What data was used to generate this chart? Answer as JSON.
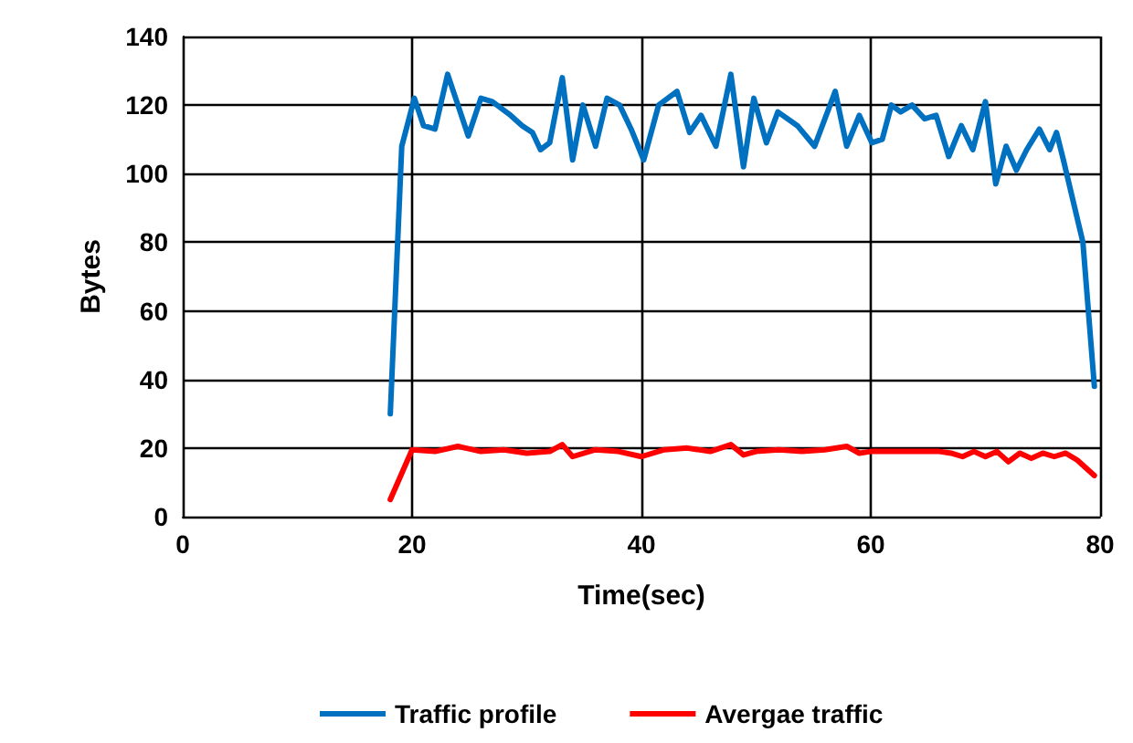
{
  "chart_data": {
    "type": "line",
    "xlabel": "Time(sec)",
    "ylabel": "Bytes",
    "xlim": [
      0,
      80
    ],
    "xticks": [
      0,
      20,
      40,
      60,
      80
    ],
    "ylim": [
      0,
      140
    ],
    "yticks": [
      0,
      20,
      40,
      60,
      80,
      100,
      120,
      140
    ],
    "grid": true,
    "legend": "bottom",
    "marker": "none",
    "line_style": "solid",
    "series": [
      {
        "name": "Traffic profile",
        "color": "#0070c0",
        "x": [
          18.1,
          19.1,
          20.2,
          21,
          22,
          23.1,
          23.9,
          24.9,
          26,
          27,
          28.6,
          29.6,
          30.5,
          31.2,
          32,
          33.1,
          34,
          34.9,
          36,
          37,
          38.1,
          39.1,
          40.2,
          41.5,
          43.1,
          44.2,
          45.2,
          46.5,
          47.8,
          48.9,
          49.8,
          50.9,
          51.9,
          53.6,
          55.1,
          56.9,
          57.9,
          59,
          60.1,
          61,
          61.8,
          62.6,
          63.6,
          64.7,
          65.7,
          66.8,
          67.9,
          68.9,
          70,
          70.9,
          71.8,
          72.7,
          73.6,
          74.7,
          75.6,
          76.2,
          76.8,
          78.5,
          79.5
        ],
        "values": [
          30,
          108,
          122,
          114,
          113,
          129,
          121,
          111,
          122,
          121,
          117,
          114,
          112,
          107,
          109,
          128,
          104,
          120,
          108,
          122,
          120,
          113,
          104,
          120,
          124,
          112,
          117,
          108,
          129,
          102,
          122,
          109,
          118,
          114,
          108,
          124,
          108,
          117,
          109,
          110,
          120,
          118,
          120,
          116,
          117,
          105,
          114,
          107,
          121,
          97,
          108,
          101,
          107,
          113,
          107,
          112,
          104,
          80,
          38
        ]
      },
      {
        "name": "Avergae traffic",
        "color": "#ff0000",
        "x": [
          18.1,
          20,
          22,
          24,
          26,
          28,
          30,
          32,
          33.1,
          34,
          36,
          38,
          40,
          42,
          44,
          46,
          47.8,
          48.9,
          50,
          52,
          54,
          56,
          57.9,
          59,
          60,
          62,
          64,
          66,
          67,
          68,
          69,
          70,
          71,
          72,
          73,
          74,
          75,
          76,
          77,
          78,
          79.5
        ],
        "values": [
          5,
          19.5,
          19,
          20.5,
          19,
          19.5,
          18.5,
          19,
          21,
          17.5,
          19.5,
          19,
          17.5,
          19.5,
          20,
          19,
          21,
          18,
          19,
          19.5,
          19,
          19.5,
          20.5,
          18.5,
          19,
          19,
          19,
          19,
          18.5,
          17.5,
          19,
          17.5,
          19,
          16,
          18.5,
          17,
          18.5,
          17.5,
          18.5,
          16.5,
          12
        ]
      }
    ]
  }
}
